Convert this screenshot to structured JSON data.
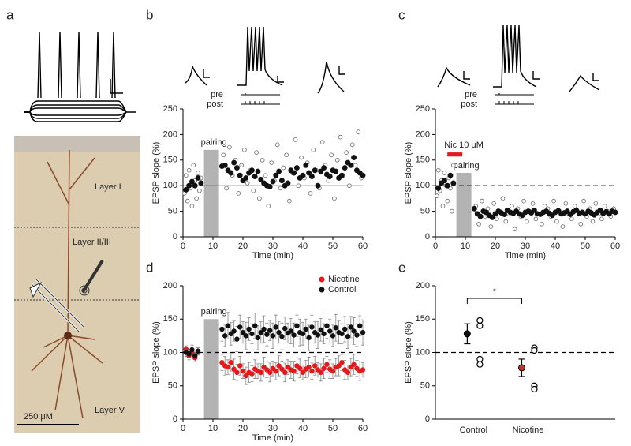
{
  "figure_a": {
    "panel": "a",
    "layers": [
      "Layer I",
      "Layer II/III",
      "Layer V"
    ],
    "scale_bar": "250 μM"
  },
  "chart_data": [
    {
      "type": "scatter",
      "panel": "b",
      "xlabel": "Time (min)",
      "ylabel": "EPSP slope (%)",
      "xlim": [
        0,
        60
      ],
      "ylim": [
        0,
        250
      ],
      "xticks": [
        0,
        10,
        20,
        30,
        40,
        50,
        60
      ],
      "yticks": [
        0,
        50,
        100,
        150,
        200,
        250
      ],
      "hline": 100,
      "hline_style": "solid",
      "inset_labels": [
        "pre",
        "post"
      ],
      "bands": [
        {
          "text": "pairing",
          "x": [
            7,
            12
          ],
          "y": [
            0,
            170
          ],
          "color": "#b3b3b3"
        }
      ],
      "series": [
        {
          "marker": "open",
          "color": "#777777",
          "x": [
            0.5,
            1,
            1.5,
            2,
            2.5,
            3,
            3.5,
            4,
            4.5,
            5,
            5.5,
            6,
            13.5,
            14.5,
            15.5,
            16.5,
            17.5,
            18.5,
            19.5,
            20.5,
            21.5,
            22.5,
            23.5,
            24.5,
            25.5,
            26.5,
            27.5,
            28.5,
            29.5,
            30.5,
            31.5,
            32.5,
            33.5,
            34.5,
            35.5,
            36.5,
            37.5,
            38.5,
            39.5,
            40.5,
            41.5,
            42.5,
            43.5,
            44.5,
            45.5,
            46.5,
            47.5,
            48.5,
            49.5,
            50.5,
            51.5,
            52.5,
            53.5,
            54.5,
            55.5,
            56.5,
            57.5,
            58.5,
            59.5
          ],
          "values": [
            85,
            120,
            70,
            130,
            95,
            60,
            140,
            110,
            75,
            125,
            90,
            115,
            160,
            95,
            175,
            120,
            150,
            85,
            140,
            170,
            105,
            130,
            90,
            165,
            75,
            150,
            120,
            60,
            145,
            110,
            180,
            95,
            135,
            160,
            70,
            125,
            190,
            100,
            155,
            115,
            145,
            85,
            170,
            130,
            95,
            185,
            140,
            110,
            160,
            75,
            150,
            195,
            120,
            165,
            100,
            180,
            140,
            205,
            115
          ]
        },
        {
          "marker": "filled",
          "color": "#111111",
          "x": [
            1,
            2,
            3,
            4,
            5,
            6,
            13,
            14,
            15,
            16,
            17,
            18,
            19,
            20,
            21,
            22,
            23,
            24,
            25,
            26,
            27,
            28,
            29,
            30,
            31,
            32,
            33,
            34,
            35,
            36,
            37,
            38,
            39,
            40,
            41,
            42,
            43,
            44,
            45,
            46,
            47,
            48,
            49,
            50,
            51,
            52,
            53,
            54,
            55,
            56,
            57,
            58,
            59,
            60
          ],
          "values": [
            92,
            100,
            108,
            100,
            115,
            105,
            138,
            140,
            130,
            125,
            145,
            135,
            120,
            110,
            115,
            125,
            130,
            118,
            128,
            112,
            105,
            100,
            98,
            108,
            120,
            128,
            110,
            100,
            105,
            130,
            125,
            135,
            115,
            120,
            140,
            125,
            118,
            130,
            100,
            128,
            135,
            122,
            118,
            130,
            128,
            115,
            120,
            135,
            145,
            140,
            155,
            130,
            125,
            120
          ]
        }
      ]
    },
    {
      "type": "scatter",
      "panel": "c",
      "xlabel": "Time (min)",
      "ylabel": "EPSP slope (%)",
      "xlim": [
        0,
        60
      ],
      "ylim": [
        0,
        250
      ],
      "xticks": [
        0,
        10,
        20,
        30,
        40,
        50,
        60
      ],
      "yticks": [
        0,
        50,
        100,
        150,
        200,
        250
      ],
      "hline": 100,
      "hline_style": "dashed",
      "inset_labels": [
        "pre",
        "post"
      ],
      "bands": [
        {
          "text": "Nic 10 μM",
          "x": [
            4,
            9
          ],
          "y": [
            157,
            165
          ],
          "color": "#e31a1c"
        },
        {
          "text": "pairing",
          "x": [
            7,
            12
          ],
          "y": [
            0,
            125
          ],
          "color": "#b3b3b3"
        }
      ],
      "series": [
        {
          "marker": "open",
          "color": "#777777",
          "x": [
            0.5,
            1,
            1.5,
            2,
            2.5,
            3,
            3.5,
            4,
            4.5,
            5,
            5.5,
            6,
            13.5,
            14.5,
            15.5,
            16.5,
            17.5,
            18.5,
            19.5,
            20.5,
            21.5,
            22.5,
            23.5,
            24.5,
            25.5,
            26.5,
            27.5,
            28.5,
            29.5,
            30.5,
            31.5,
            32.5,
            33.5,
            34.5,
            35.5,
            36.5,
            37.5,
            38.5,
            39.5,
            40.5,
            41.5,
            42.5,
            43.5,
            44.5,
            45.5,
            46.5,
            47.5,
            48.5,
            49.5,
            50.5,
            51.5,
            52.5,
            53.5,
            54.5,
            55.5,
            56.5,
            57.5,
            58.5,
            59.5
          ],
          "values": [
            80,
            130,
            90,
            110,
            60,
            125,
            100,
            70,
            115,
            95,
            50,
            140,
            60,
            25,
            70,
            40,
            55,
            20,
            65,
            35,
            50,
            75,
            30,
            45,
            60,
            15,
            55,
            40,
            70,
            30,
            50,
            65,
            35,
            45,
            25,
            60,
            55,
            40,
            70,
            30,
            50,
            20,
            65,
            45,
            35,
            60,
            50,
            25,
            70,
            40,
            55,
            30,
            65,
            45,
            35,
            60,
            50,
            40,
            55
          ]
        },
        {
          "marker": "filled",
          "color": "#111111",
          "x": [
            1,
            2,
            3,
            4,
            5,
            6,
            13,
            14,
            15,
            16,
            17,
            18,
            19,
            20,
            21,
            22,
            23,
            24,
            25,
            26,
            27,
            28,
            29,
            30,
            31,
            32,
            33,
            34,
            35,
            36,
            37,
            38,
            39,
            40,
            41,
            42,
            43,
            44,
            45,
            46,
            47,
            48,
            49,
            50,
            51,
            52,
            53,
            54,
            55,
            56,
            57,
            58,
            59,
            60
          ],
          "values": [
            95,
            105,
            110,
            100,
            120,
            105,
            55,
            45,
            40,
            50,
            48,
            42,
            38,
            45,
            50,
            47,
            44,
            52,
            48,
            46,
            50,
            45,
            42,
            48,
            50,
            47,
            52,
            45,
            44,
            48,
            50,
            46,
            42,
            48,
            51,
            45,
            47,
            50,
            44,
            49,
            52,
            46,
            48,
            45,
            50,
            47,
            43,
            48,
            52,
            46,
            49,
            45,
            50,
            48
          ]
        }
      ]
    },
    {
      "type": "errorbar",
      "panel": "d",
      "xlabel": "Time (min)",
      "ylabel": "EPSP slope (%)",
      "xlim": [
        0,
        60
      ],
      "ylim": [
        0,
        200
      ],
      "xticks": [
        0,
        10,
        20,
        30,
        40,
        50,
        60
      ],
      "yticks": [
        0,
        50,
        100,
        150,
        200
      ],
      "hline": 100,
      "hline_style": "dashed",
      "legend": "upper right",
      "error_color": "#888888",
      "bands": [
        {
          "text": "pairing",
          "x": [
            7,
            12
          ],
          "y": [
            0,
            150
          ],
          "color": "#b3b3b3"
        }
      ],
      "series": [
        {
          "name": "Nicotine",
          "color": "#e31a1c",
          "x": [
            1,
            2,
            3,
            4,
            5,
            13,
            14,
            15,
            16,
            17,
            18,
            19,
            20,
            21,
            22,
            23,
            24,
            25,
            26,
            27,
            28,
            29,
            30,
            31,
            32,
            33,
            34,
            35,
            36,
            37,
            38,
            39,
            40,
            41,
            42,
            43,
            44,
            45,
            46,
            47,
            48,
            49,
            50,
            51,
            52,
            53,
            54,
            55,
            56,
            57,
            58,
            59,
            60
          ],
          "values": [
            105,
            95,
            100,
            92,
            102,
            85,
            80,
            78,
            85,
            75,
            70,
            80,
            72,
            65,
            70,
            68,
            75,
            72,
            70,
            78,
            74,
            70,
            76,
            72,
            80,
            75,
            70,
            78,
            74,
            72,
            80,
            76,
            70,
            75,
            78,
            72,
            80,
            74,
            70,
            76,
            82,
            75,
            72,
            78,
            80,
            85,
            74,
            70,
            78,
            82,
            76,
            72,
            74
          ],
          "errors": [
            5,
            6,
            4,
            6,
            5,
            12,
            14,
            11,
            13,
            15,
            12,
            14,
            11,
            13,
            15,
            12,
            14,
            11,
            13,
            15,
            12,
            14,
            11,
            13,
            15,
            12,
            14,
            11,
            13,
            15,
            12,
            14,
            11,
            13,
            15,
            12,
            14,
            11,
            13,
            15,
            12,
            14,
            11,
            13,
            15,
            12,
            14,
            11,
            13,
            15,
            12,
            14,
            11
          ]
        },
        {
          "name": "Control",
          "color": "#111111",
          "x": [
            1,
            2,
            3,
            4,
            5,
            13,
            14,
            15,
            16,
            17,
            18,
            19,
            20,
            21,
            22,
            23,
            24,
            25,
            26,
            27,
            28,
            29,
            30,
            31,
            32,
            33,
            34,
            35,
            36,
            37,
            38,
            39,
            40,
            41,
            42,
            43,
            44,
            45,
            46,
            47,
            48,
            49,
            50,
            51,
            52,
            53,
            54,
            55,
            56,
            57,
            58,
            59,
            60
          ],
          "values": [
            100,
            98,
            104,
            95,
            102,
            135,
            125,
            140,
            128,
            132,
            120,
            138,
            130,
            125,
            135,
            128,
            140,
            122,
            130,
            135,
            127,
            133,
            125,
            138,
            130,
            124,
            136,
            129,
            132,
            126,
            140,
            130,
            128,
            135,
            122,
            138,
            130,
            126,
            134,
            128,
            140,
            132,
            125,
            137,
            130,
            128,
            135,
            124,
            138,
            132,
            126,
            140,
            130
          ],
          "errors": [
            6,
            5,
            7,
            5,
            6,
            18,
            16,
            20,
            17,
            15,
            19,
            18,
            16,
            20,
            17,
            15,
            19,
            18,
            16,
            20,
            17,
            15,
            19,
            18,
            16,
            20,
            17,
            15,
            19,
            18,
            16,
            20,
            17,
            15,
            19,
            18,
            16,
            20,
            17,
            15,
            19,
            18,
            16,
            20,
            17,
            15,
            19,
            18,
            16,
            20,
            17,
            15,
            19
          ]
        }
      ]
    },
    {
      "type": "dot",
      "panel": "e",
      "ylabel": "EPSP slope (%)",
      "ylim": [
        0,
        200
      ],
      "yticks": [
        0,
        50,
        100,
        150,
        200
      ],
      "hline": 100,
      "hline_style": "dashed",
      "categories": [
        "Control",
        "Nicotine"
      ],
      "colors": [
        "#111111",
        "#c0392b"
      ],
      "means": [
        128,
        77
      ],
      "errors": [
        15,
        13
      ],
      "points": [
        [
          148,
          140,
          90,
          82
        ],
        [
          107,
          103,
          50,
          45
        ]
      ],
      "significance": "*"
    }
  ]
}
